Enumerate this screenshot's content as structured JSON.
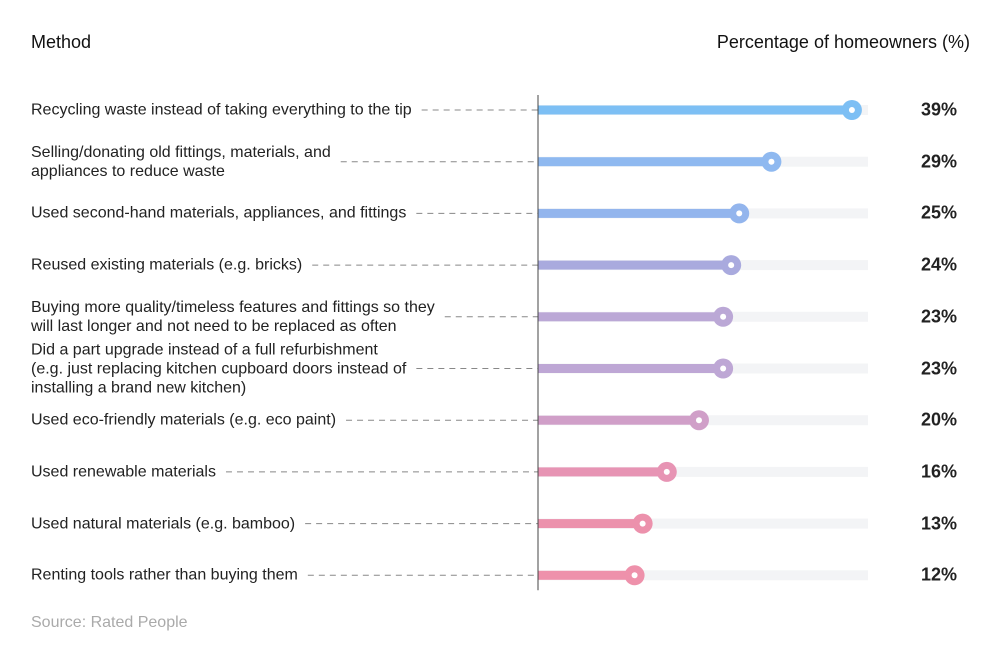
{
  "chart_data": {
    "type": "lollipop",
    "category_header": "Method",
    "value_header": "Percentage of homeowners (%)",
    "source": "Source: Rated People",
    "categories": [
      "Recycling waste instead of taking everything to the tip",
      "Selling/donating old fittings, materials, and\nappliances to reduce waste",
      "Used second-hand materials, appliances, and fittings",
      "Reused existing materials (e.g. bricks)",
      "Buying more quality/timeless features and fittings so they\nwill last longer and not need to be replaced as often",
      "Did a part upgrade instead of a full refurbishment\n(e.g. just replacing kitchen cupboard doors instead of\ninstalling a brand new kitchen)",
      "Used eco-friendly materials (e.g. eco paint)",
      "Used renewable materials",
      "Used natural materials (e.g. bamboo)",
      "Renting tools rather than buying them"
    ],
    "values": [
      39,
      29,
      25,
      24,
      23,
      23,
      20,
      16,
      13,
      12
    ],
    "value_labels": [
      "39%",
      "29%",
      "25%",
      "24%",
      "23%",
      "23%",
      "20%",
      "16%",
      "13%",
      "12%"
    ],
    "colors": [
      "#7dbff4",
      "#8fb9f0",
      "#93b5ed",
      "#a9aade",
      "#bba8d6",
      "#bea7d5",
      "#d09fc8",
      "#e794b4",
      "#ec91ac",
      "#ee91ab"
    ],
    "xlim": [
      0,
      41
    ]
  }
}
